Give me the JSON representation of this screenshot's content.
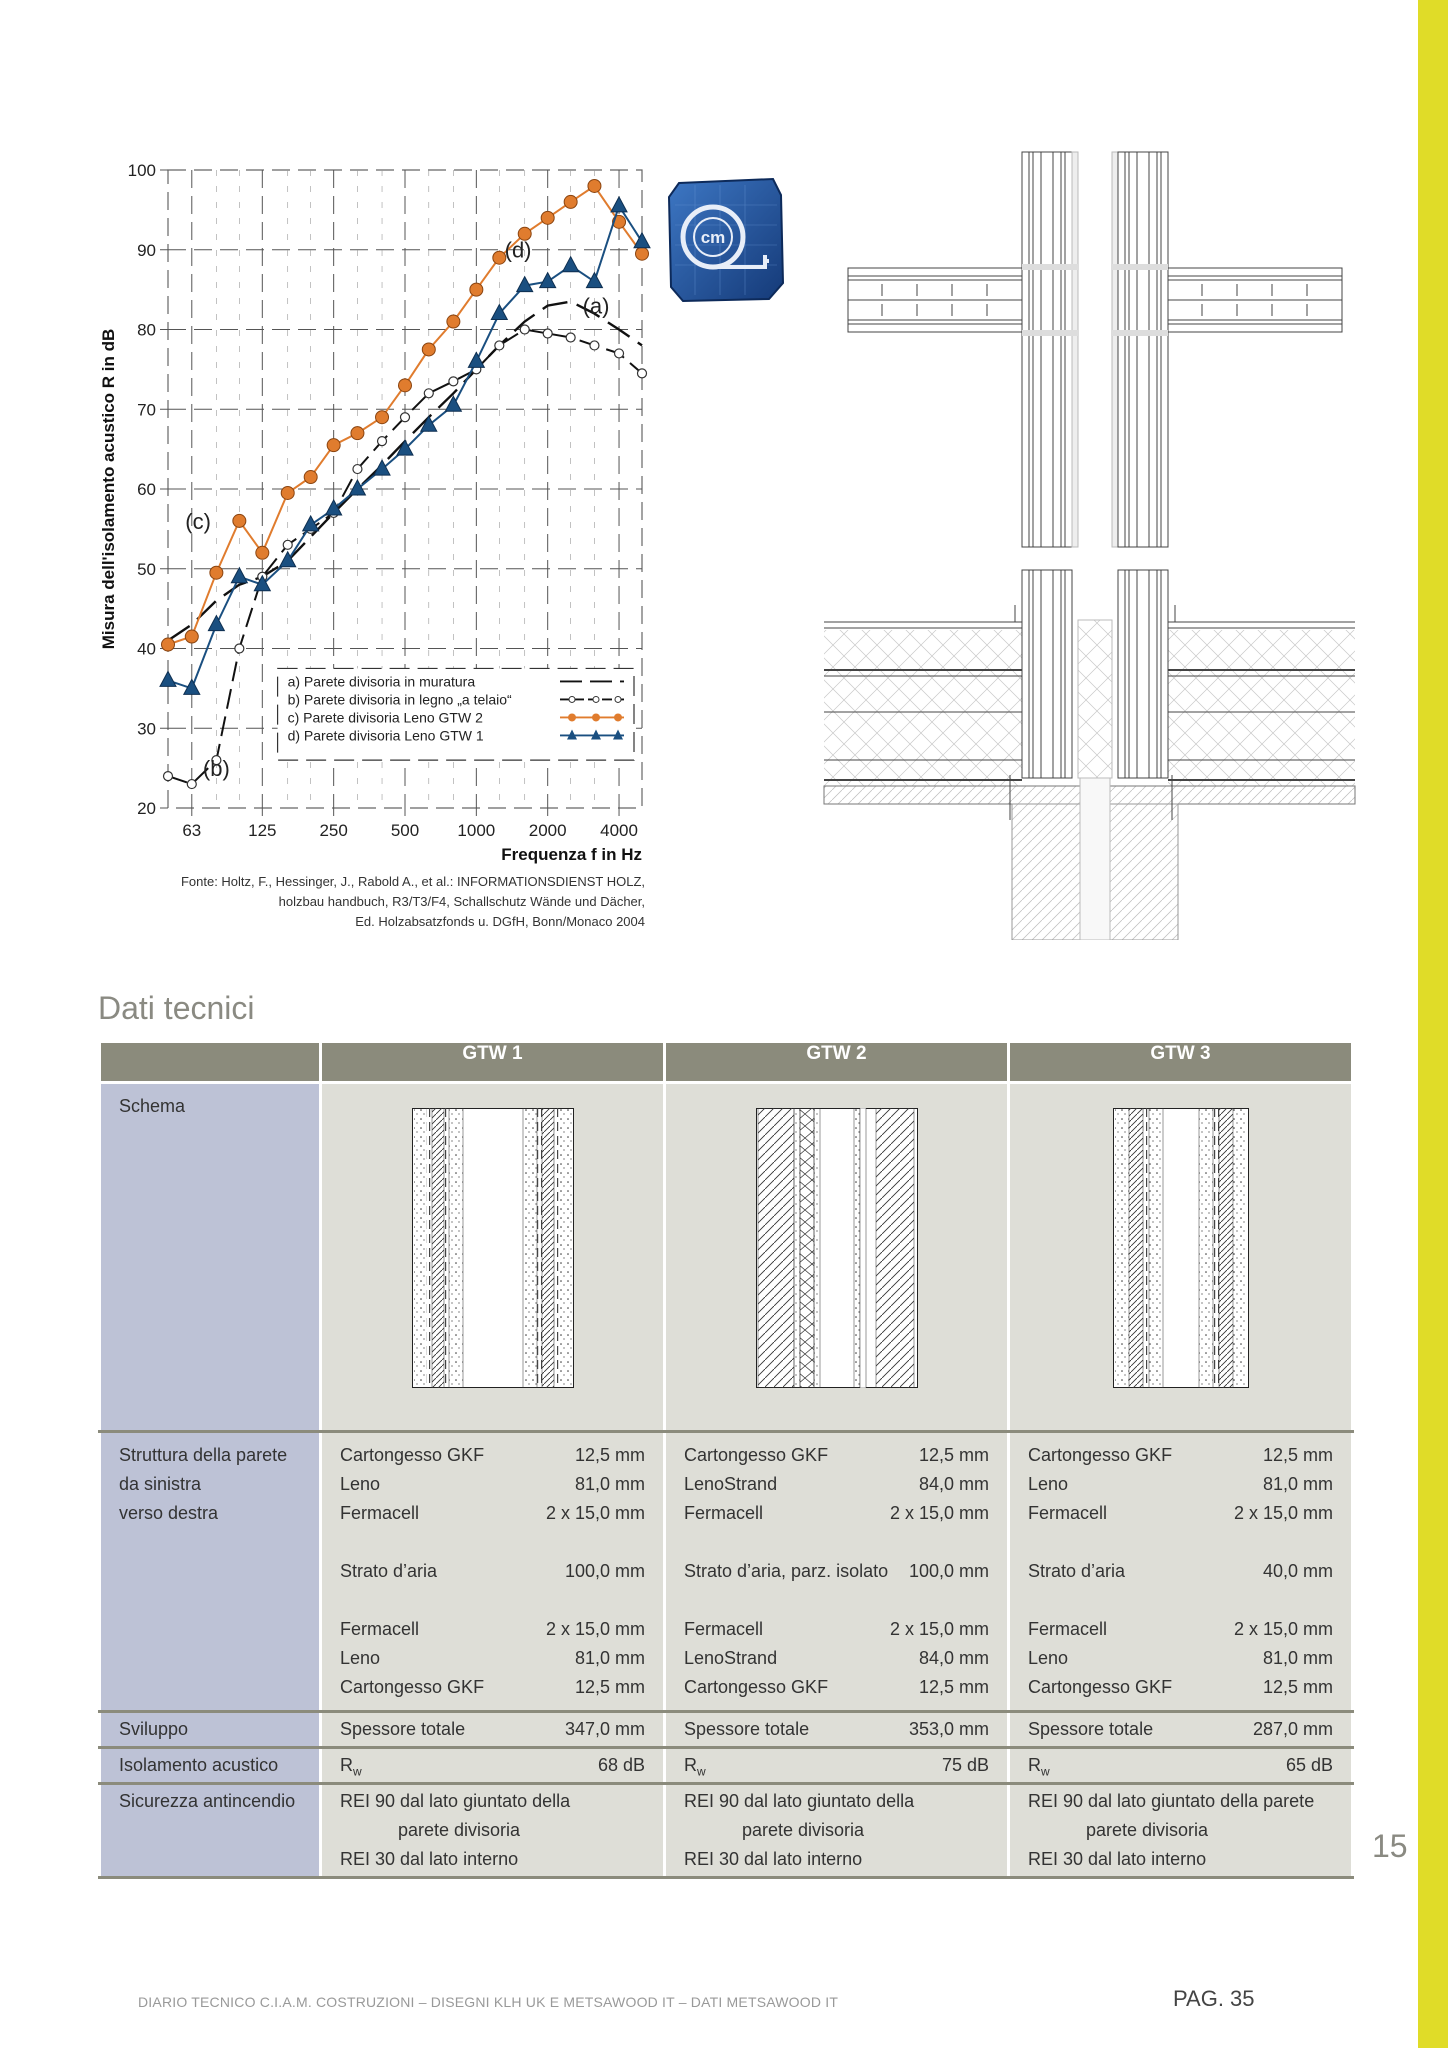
{
  "chart_data": {
    "type": "line",
    "ylabel": "Misura dell'isolamento acustico R in dB",
    "xlabel": "Frequenza f in Hz",
    "ylim": [
      20,
      100
    ],
    "yticks": [
      20,
      30,
      40,
      50,
      60,
      70,
      80,
      90,
      100
    ],
    "x_scale": "log",
    "xlim": [
      50,
      5000
    ],
    "xticks": [
      63,
      125,
      250,
      500,
      1000,
      2000,
      4000
    ],
    "xtick_labels": [
      "63",
      "125",
      "250",
      "500",
      "1000",
      "2000",
      "4000"
    ],
    "grid": true,
    "legend_position": "bottom-right",
    "legend": [
      "a) Parete divisoria in muratura",
      "b) Parete divisoria in legno „a telaio“",
      "c) Parete divisoria Leno GTW 2",
      "d) Parete divisoria Leno GTW 1"
    ],
    "series": [
      {
        "name": "a) Parete divisoria in muratura",
        "label": "(a)",
        "label_x": 3200,
        "label_y": 82,
        "color": "#111111",
        "marker": "none",
        "dash": true,
        "x": [
          50,
          63,
          80,
          100,
          125,
          160,
          200,
          250,
          315,
          400,
          500,
          630,
          800,
          1000,
          1250,
          1600,
          2000,
          2500,
          3150,
          4000,
          5000
        ],
        "y": [
          41,
          43,
          46,
          48,
          49,
          51,
          54,
          57,
          60,
          63,
          66,
          69,
          72,
          75,
          78,
          81,
          83,
          83.5,
          82,
          80,
          78
        ]
      },
      {
        "name": "b) Parete divisoria in legno „a telaio“",
        "label": "(b)",
        "label_x": 80,
        "label_y": 24,
        "color": "#111111",
        "marker": "open-circle",
        "dash": true,
        "x": [
          50,
          63,
          80,
          100,
          125,
          160,
          200,
          250,
          315,
          400,
          500,
          630,
          800,
          1000,
          1250,
          1600,
          2000,
          2500,
          3150,
          4000,
          5000
        ],
        "y": [
          24,
          23,
          26,
          40,
          49,
          53,
          55,
          57,
          62.5,
          66,
          69,
          72,
          73.5,
          75,
          78,
          80,
          79.5,
          79,
          78,
          77,
          74.5
        ]
      },
      {
        "name": "c) Parete divisoria Leno GTW 2",
        "label": "(c)",
        "label_x": 67,
        "label_y": 55,
        "color": "#e07c2e",
        "marker": "filled-circle",
        "dash": false,
        "x": [
          50,
          63,
          80,
          100,
          125,
          160,
          200,
          250,
          315,
          400,
          500,
          630,
          800,
          1000,
          1250,
          1600,
          2000,
          2500,
          3150,
          4000,
          5000
        ],
        "y": [
          40.5,
          41.5,
          49.5,
          56,
          52,
          59.5,
          61.5,
          65.5,
          67,
          69,
          73,
          77.5,
          81,
          85,
          89,
          92,
          94,
          96,
          98,
          93.5,
          89.5
        ]
      },
      {
        "name": "d) Parete divisoria Leno GTW 1",
        "label": "(d)",
        "label_x": 1500,
        "label_y": 89,
        "color": "#1a4f80",
        "marker": "filled-triangle",
        "dash": false,
        "x": [
          50,
          63,
          80,
          100,
          125,
          160,
          200,
          250,
          315,
          400,
          500,
          630,
          800,
          1000,
          1250,
          1600,
          2000,
          2500,
          3150,
          4000,
          5000
        ],
        "y": [
          36,
          35,
          43,
          49,
          48,
          51,
          55.5,
          57.5,
          60,
          62.5,
          65,
          68,
          70.5,
          76,
          82,
          85.5,
          86,
          88,
          86,
          95.5,
          91
        ]
      }
    ]
  },
  "chart_source": [
    "Fonte: Holtz, F., Hessinger, J., Rabold A., et al.: INFORMATIONSDIENST HOLZ,",
    "holzbau handbuch, R3/T3/F4, Schallschutz Wände und Dächer,",
    "Ed. Holzabsatzfonds u. DGfH, Bonn/Monaco 2004"
  ],
  "icon": {
    "label": "cm",
    "name": "tape-measure-icon",
    "color": "#1d4f9a"
  },
  "section_title": "Dati tecnici",
  "table": {
    "columns": [
      "GTW 1",
      "GTW 2",
      "GTW 3"
    ],
    "row_labels": {
      "schema": "Schema",
      "struttura": [
        "Struttura della parete",
        "da sinistra",
        "verso destra"
      ],
      "sviluppo": "Sviluppo",
      "isolamento": "Isolamento acustico",
      "sicurezza": "Sicurezza antincendio"
    },
    "gtw1": {
      "layers": [
        {
          "name": "Cartongesso GKF",
          "value": "12,5 mm"
        },
        {
          "name": "Leno",
          "value": "81,0 mm"
        },
        {
          "name": "Fermacell",
          "value": "2 x 15,0 mm"
        },
        {
          "name": "Strato d’aria",
          "value": "100,0 mm"
        },
        {
          "name": "Fermacell",
          "value": "2 x 15,0 mm"
        },
        {
          "name": "Leno",
          "value": "81,0 mm"
        },
        {
          "name": "Cartongesso GKF",
          "value": "12,5 mm"
        }
      ],
      "sviluppo": {
        "label": "Spessore totale",
        "value": "347,0 mm"
      },
      "rw": {
        "label": "R",
        "sub": "w",
        "value": "68 dB"
      },
      "fire": [
        "REI 90 dal lato giuntato della",
        "parete divisoria",
        "REI 30 dal lato interno"
      ]
    },
    "gtw2": {
      "layers": [
        {
          "name": "Cartongesso GKF",
          "value": "12,5 mm"
        },
        {
          "name": "LenoStrand",
          "value": "84,0 mm"
        },
        {
          "name": "Fermacell",
          "value": "2 x 15,0 mm"
        },
        {
          "name": "Strato d’aria, parz. isolato",
          "value": "100,0 mm"
        },
        {
          "name": "Fermacell",
          "value": "2 x 15,0 mm"
        },
        {
          "name": "LenoStrand",
          "value": "84,0 mm"
        },
        {
          "name": "Cartongesso GKF",
          "value": "12,5 mm"
        }
      ],
      "sviluppo": {
        "label": "Spessore totale",
        "value": "353,0 mm"
      },
      "rw": {
        "label": "R",
        "sub": "w",
        "value": "75 dB"
      },
      "fire": [
        "REI 90 dal lato giuntato della",
        "parete divisoria",
        "REI 30 dal lato interno"
      ]
    },
    "gtw3": {
      "layers": [
        {
          "name": "Cartongesso GKF",
          "value": "12,5 mm"
        },
        {
          "name": "Leno",
          "value": "81,0 mm"
        },
        {
          "name": "Fermacell",
          "value": "2 x 15,0 mm"
        },
        {
          "name": "Strato d’aria",
          "value": "40,0 mm"
        },
        {
          "name": "Fermacell",
          "value": "2 x 15,0 mm"
        },
        {
          "name": "Leno",
          "value": "81,0 mm"
        },
        {
          "name": "Cartongesso GKF",
          "value": "12,5 mm"
        }
      ],
      "sviluppo": {
        "label": "Spessore totale",
        "value": "287,0 mm"
      },
      "rw": {
        "label": "R",
        "sub": "w",
        "value": "65 dB"
      },
      "fire": [
        "REI 90 dal lato giuntato della parete",
        "parete divisoria",
        "REI 30 dal lato interno"
      ]
    }
  },
  "page_number": "15",
  "footer": {
    "left": "DIARIO TECNICO C.I.A.M. COSTRUZIONI – DISEGNI KLH UK E METSAWOOD IT – DATI METSAWOOD IT",
    "right": "PAG. 35"
  }
}
